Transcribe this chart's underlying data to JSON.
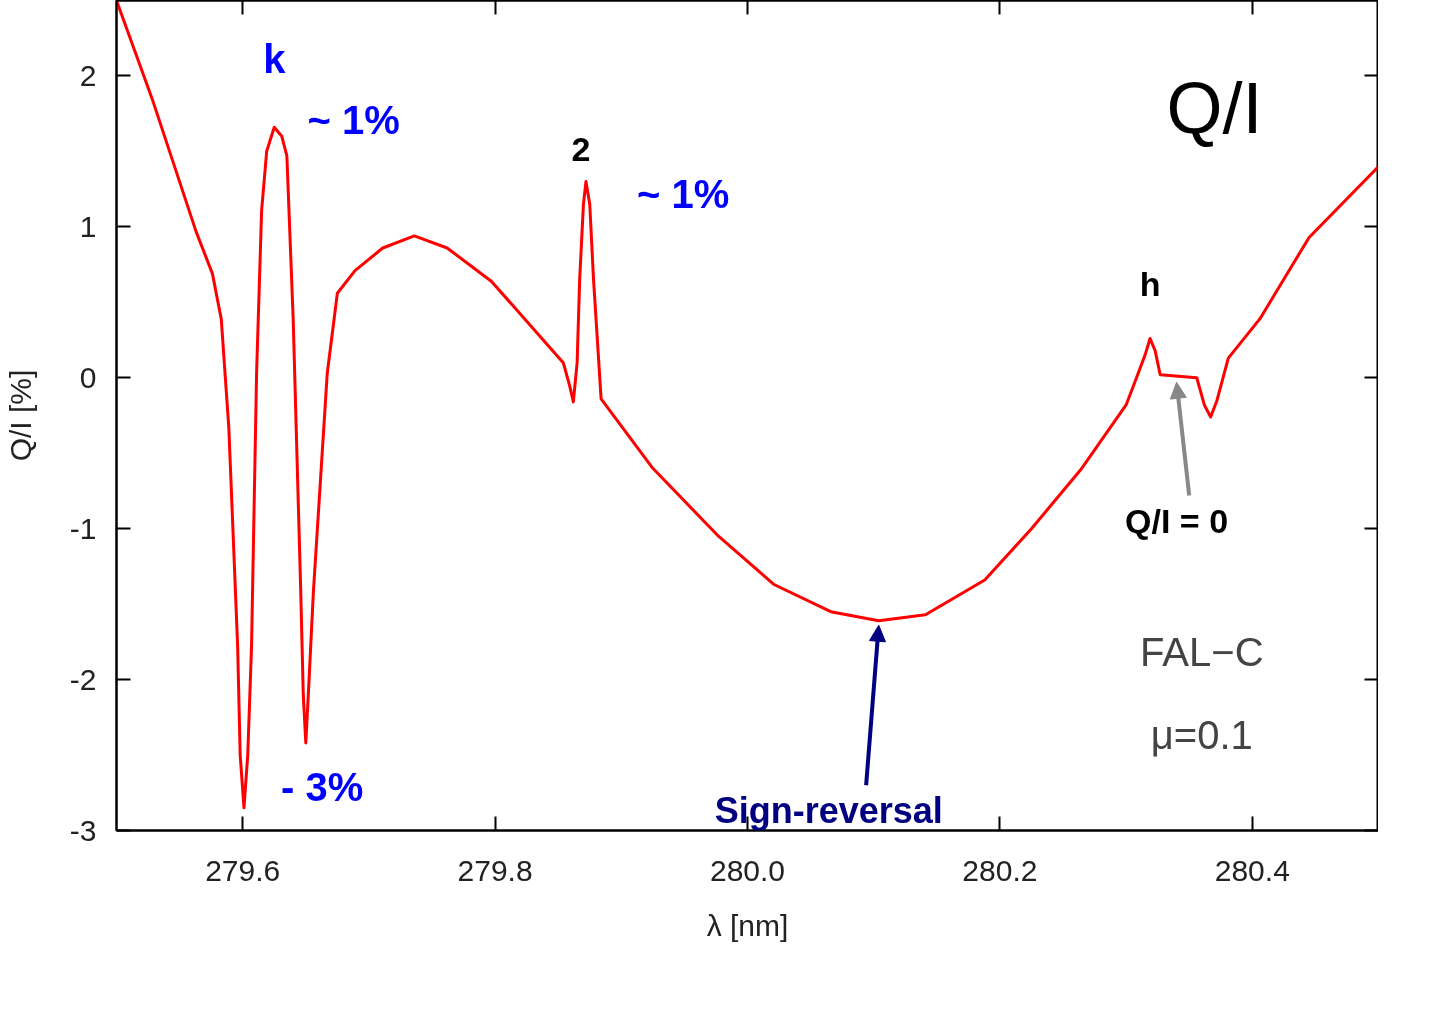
{
  "chart_data": {
    "type": "line",
    "title": "Q/I",
    "xlabel": "λ [nm]",
    "ylabel": "Q/I [%]",
    "xlim": [
      279.5,
      280.5
    ],
    "ylim": [
      -3,
      2.5
    ],
    "xticks": [
      279.6,
      279.8,
      {
        "value": 280.0,
        "label": "280.0"
      },
      280.2,
      280.4
    ],
    "yticks": [
      -3,
      -2,
      -1,
      0,
      1,
      2
    ],
    "marker": "none",
    "line_style": "solid",
    "series": [
      {
        "color": "#ff0000",
        "x": [
          279.5,
          279.529,
          279.563,
          279.576,
          279.583,
          279.589,
          279.596,
          279.598,
          279.601,
          279.604,
          279.607,
          279.611,
          279.615,
          279.619,
          279.625,
          279.631,
          279.635,
          279.64,
          279.646,
          279.648,
          279.65,
          279.652,
          279.656,
          279.667,
          279.675,
          279.689,
          279.711,
          279.736,
          279.762,
          279.797,
          279.854,
          279.859,
          279.862,
          279.865,
          279.867,
          279.87,
          279.872,
          279.875,
          279.878,
          279.884,
          279.925,
          279.977,
          280.021,
          280.066,
          280.104,
          280.141,
          280.188,
          280.225,
          280.264,
          280.3,
          280.306,
          280.315,
          280.319,
          280.323,
          280.327,
          280.356,
          280.362,
          280.367,
          280.372,
          280.381,
          280.406,
          280.445,
          280.5
        ],
        "values": [
          2.5,
          1.83,
          0.97,
          0.69,
          0.39,
          -0.33,
          -1.78,
          -2.5,
          -2.85,
          -2.5,
          -1.78,
          0.03,
          1.11,
          1.5,
          1.66,
          1.6,
          1.47,
          0.39,
          -1.42,
          -2.1,
          -2.42,
          -2.1,
          -1.42,
          0.03,
          0.56,
          0.71,
          0.86,
          0.94,
          0.86,
          0.64,
          0.1,
          -0.05,
          -0.16,
          0.1,
          0.65,
          1.15,
          1.3,
          1.15,
          0.65,
          -0.14,
          -0.6,
          -1.05,
          -1.37,
          -1.55,
          -1.61,
          -1.57,
          -1.34,
          -1.0,
          -0.61,
          -0.18,
          -0.05,
          0.15,
          0.26,
          0.18,
          0.02,
          0.0,
          -0.18,
          -0.26,
          -0.15,
          0.13,
          0.39,
          0.93,
          1.4
        ]
      }
    ],
    "annotations": [
      {
        "text": "k",
        "x": 279.625,
        "y": 1.66
      },
      {
        "text": "~ 1%",
        "x": 279.625,
        "y": 1.66
      },
      {
        "text": "- 3%",
        "x": 279.601,
        "y": -2.85
      },
      {
        "text": "2",
        "x": 279.872,
        "y": 1.3
      },
      {
        "text": "~ 1%",
        "x": 279.872,
        "y": 1.3
      },
      {
        "text": "h",
        "x": 280.319,
        "y": 0.26
      },
      {
        "text": "Q/I = 0",
        "x": 280.34,
        "y": 0.0
      },
      {
        "text": "Sign-reversal",
        "x": 280.104,
        "y": -1.61
      },
      "FAL−C",
      "μ=0.1"
    ]
  }
}
